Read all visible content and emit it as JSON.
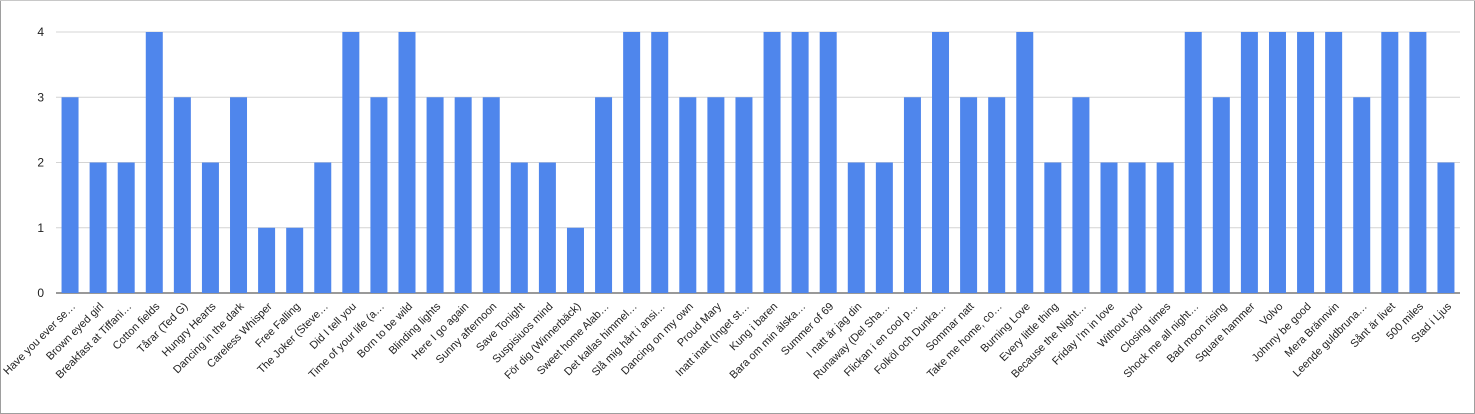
{
  "chart_data": {
    "type": "bar",
    "title": "",
    "xlabel": "",
    "ylabel": "",
    "ylim": [
      0,
      4
    ],
    "yticks": [
      0,
      1,
      2,
      3,
      4
    ],
    "grid": true,
    "legend": "none",
    "bar_color": "#4f86ec",
    "grid_color": "#d4d4d4",
    "categories": [
      "Have you ever se…",
      "Brown eyed girl",
      "Breakfast at Tiffani…",
      "Cotton fields",
      "Tårar (Ted G)",
      "Hungry Hearts",
      "Dancing in the dark",
      "Careless Whisper",
      "Free Falling",
      "The Joker (Steve…",
      "Did I tell you",
      "Time of your life (a…",
      "Born to be wild",
      "Blinding lights",
      "Here I go again",
      "Sunny afternoon",
      "Save Tonight",
      "Suspisiuos mind",
      "För dig (Winnerbäck)",
      "Sweet home Alab…",
      "Det kallas himmel…",
      "Slå mig hårt i ansi…",
      "Dancing on my own",
      "Proud Mary",
      "Inatt inatt (Inget st…",
      "Kung i baren",
      "Bara om min älska…",
      "Summer of 69",
      "I natt är jag din",
      "Runaway (Del Sha…",
      "Flickan i en cool p…",
      "Folköl och Dunka…",
      "Sommar natt",
      "Take me home, co…",
      "Burning Love",
      "Every little thing",
      "Because the Night…",
      "Friday I'm in love",
      "Without you",
      "Closing times",
      "Shock me all night…",
      "Bad moon rising",
      "Square hammer",
      "Volvo",
      "Johnny be good",
      "Mera Brännvin",
      "Leende guldbruna…",
      "Sånt är livet",
      "500 miles",
      "Stad i Ljus"
    ],
    "values": [
      3,
      2,
      2,
      4,
      3,
      2,
      3,
      1,
      1,
      2,
      4,
      3,
      4,
      3,
      3,
      3,
      2,
      2,
      1,
      3,
      4,
      4,
      3,
      3,
      3,
      4,
      4,
      4,
      2,
      2,
      3,
      4,
      3,
      3,
      4,
      2,
      3,
      2,
      2,
      2,
      4,
      3,
      4,
      4,
      4,
      4,
      3,
      4,
      4,
      2
    ]
  }
}
